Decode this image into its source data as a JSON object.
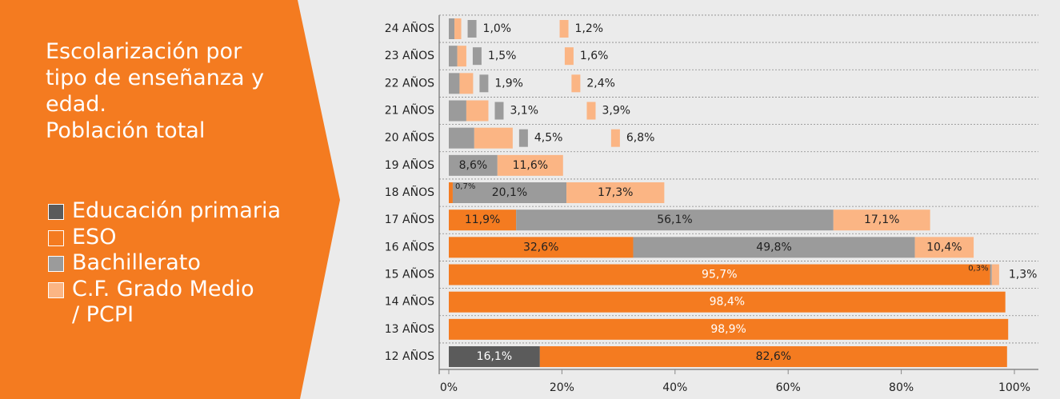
{
  "chart_data": {
    "type": "stacked-bar-horizontal",
    "title": "Escolarización por tipo de enseñanza y edad.",
    "subtitle": "Población total",
    "categories": [
      "24 AÑOS",
      "23 AÑOS",
      "22 AÑOS",
      "21 AÑOS",
      "20 AÑOS",
      "19 AÑOS",
      "18 AÑOS",
      "17 AÑOS",
      "16 AÑOS",
      "15 AÑOS",
      "14 AÑOS",
      "13 AÑOS",
      "12 AÑOS"
    ],
    "series": [
      {
        "name": "Educación primaria",
        "color": "#5b5b5b",
        "values": [
          null,
          null,
          null,
          null,
          null,
          null,
          null,
          null,
          null,
          null,
          null,
          null,
          16.1
        ],
        "value_labels": [
          null,
          null,
          null,
          null,
          null,
          null,
          null,
          null,
          null,
          null,
          null,
          null,
          "16,1%"
        ]
      },
      {
        "name": "ESO",
        "color": "#f47b20",
        "values": [
          null,
          null,
          null,
          null,
          null,
          null,
          0.7,
          11.9,
          32.6,
          95.7,
          98.4,
          98.9,
          82.6
        ],
        "value_labels": [
          null,
          null,
          null,
          null,
          null,
          null,
          "0,7%",
          "11,9%",
          "32,6%",
          "95,7%",
          "98,4%",
          "98,9%",
          "82,6%"
        ]
      },
      {
        "name": "Bachillerato",
        "color": "#9b9b9b",
        "values": [
          1.0,
          1.5,
          1.9,
          3.1,
          4.5,
          8.6,
          20.1,
          56.1,
          49.8,
          0.3,
          null,
          null,
          null
        ],
        "value_labels": [
          "1,0%",
          "1,5%",
          "1,9%",
          "3,1%",
          "4,5%",
          "8,6%",
          "20,1%",
          "56,1%",
          "49,8%",
          "0,3%",
          null,
          null,
          null
        ]
      },
      {
        "name": "C.F. Grado Medio / PCPI",
        "color": "#fbb584",
        "values": [
          1.2,
          1.6,
          2.4,
          3.9,
          6.8,
          11.6,
          17.3,
          17.1,
          10.4,
          1.3,
          null,
          null,
          null
        ],
        "value_labels": [
          "1,2%",
          "1,6%",
          "2,4%",
          "3,9%",
          "6,8%",
          "11,6%",
          "17,3%",
          "17,1%",
          "10,4%",
          "1,3%",
          null,
          null,
          null
        ]
      }
    ],
    "xlim": [
      0,
      100
    ],
    "xticks": [
      {
        "value": 0,
        "label": "0%"
      },
      {
        "value": 20,
        "label": "20%"
      },
      {
        "value": 40,
        "label": "40%"
      },
      {
        "value": 60,
        "label": "60%"
      },
      {
        "value": 80,
        "label": "80%"
      },
      {
        "value": 100,
        "label": "100%"
      }
    ],
    "grid": true
  }
}
